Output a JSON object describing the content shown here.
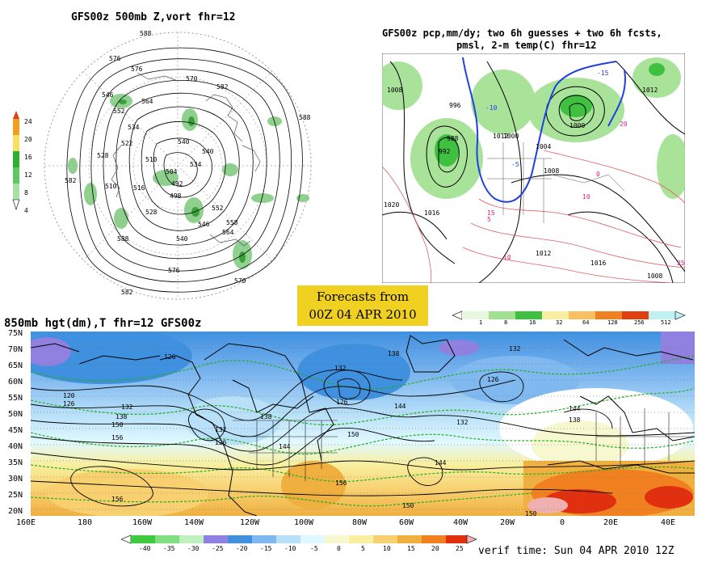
{
  "polar_panel": {
    "title": "GFS00z  500mb Z,vort    fhr=12",
    "scale_labels": [
      "24",
      "20",
      "16",
      "12",
      "8",
      "4"
    ],
    "scale_colors": [
      "#e04020",
      "#f0a020",
      "#f8e060",
      "#30b030",
      "#60c860",
      "#a8e0a8"
    ],
    "height_labels": [
      "588",
      "576",
      "570",
      "576",
      "582",
      "546",
      "564",
      "582",
      "558",
      "552",
      "534",
      "522",
      "528",
      "540",
      "516",
      "510",
      "504",
      "492",
      "498",
      "540",
      "546",
      "558",
      "552",
      "528",
      "534",
      "540",
      "564",
      "570",
      "576",
      "582",
      "588",
      "510"
    ]
  },
  "precip_panel": {
    "title_line1": "GFS00z pcp,mm/dy; two 6h guesses + two 6h fcsts,",
    "title_line2": "pmsl, 2-m temp(C)  fhr=12",
    "pressure_labels": [
      "996",
      "1008",
      "988",
      "992",
      "1000",
      "1004",
      "1012",
      "1020",
      "1016",
      "1008",
      "1012",
      "1000",
      "1016",
      "1012",
      "1008"
    ],
    "temp_labels": [
      "-10",
      "-5",
      "0",
      "5",
      "10",
      "15",
      "20",
      "25"
    ],
    "scale_labels": [
      "1",
      "8",
      "16",
      "32",
      "64",
      "128",
      "256",
      "512"
    ],
    "scale_colors": [
      "#e8f8e0",
      "#a0e090",
      "#40c040",
      "#f8f0a0",
      "#f8c060",
      "#f08020",
      "#e04010",
      "#c0f0f0"
    ]
  },
  "forecast_box": {
    "line1": "Forecasts from",
    "line2": "00Z 04 APR 2010"
  },
  "main_map": {
    "title": "850mb hgt(dm),T  fhr=12 GFS00z",
    "lat_labels": [
      "75N",
      "70N",
      "65N",
      "60N",
      "55N",
      "50N",
      "45N",
      "40N",
      "35N",
      "30N",
      "25N",
      "20N"
    ],
    "lon_labels": [
      "160E",
      "180",
      "160W",
      "140W",
      "120W",
      "100W",
      "80W",
      "60W",
      "40W",
      "20W",
      "0",
      "20E",
      "40E"
    ],
    "height_labels": [
      "126",
      "120",
      "126",
      "132",
      "138",
      "150",
      "156",
      "132",
      "126",
      "138",
      "144",
      "132",
      "126",
      "132",
      "144",
      "150",
      "156",
      "132",
      "126",
      "144",
      "150",
      "132",
      "138",
      "144",
      "150",
      "156"
    ],
    "temp_scale_labels": [
      "-40",
      "-35",
      "-30",
      "-25",
      "-20",
      "-15",
      "-10",
      "-5",
      "0",
      "5",
      "10",
      "15",
      "20",
      "25"
    ],
    "temp_scale_colors": [
      "#40c840",
      "#80e080",
      "#c0f0c0",
      "#9080e0",
      "#4090e0",
      "#80b8f0",
      "#b8e0f8",
      "#e0f8ff",
      "#f8f8d0",
      "#f8f0a0",
      "#f8d070",
      "#f0b040",
      "#f08020",
      "#e03010",
      "#f0b0b0"
    ]
  },
  "verif_time": "verif time: Sun 04 APR 2010 12Z"
}
